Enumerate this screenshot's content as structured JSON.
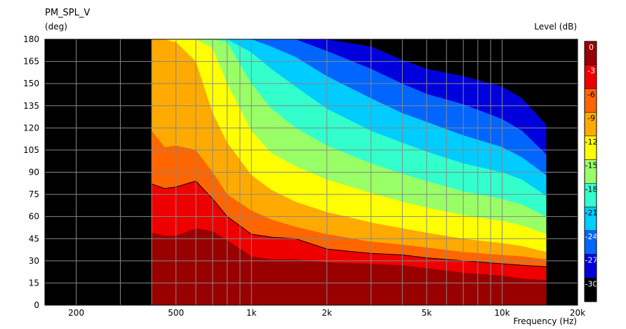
{
  "chart_data": {
    "type": "heatmap",
    "title": "PM_SPL_V",
    "ylabel": "(deg)",
    "xlabel": "Frequency  (Hz)",
    "colorbar_label": "Level  (dB)",
    "x_scale": "log",
    "xlim": [
      150,
      20000
    ],
    "ylim": [
      0,
      180
    ],
    "x_ticks": [
      200,
      500,
      1000,
      2000,
      5000,
      10000,
      20000
    ],
    "x_tick_labels": [
      "200",
      "500",
      "1k",
      "2k",
      "5k",
      "10k",
      "20k"
    ],
    "y_ticks": [
      0,
      15,
      30,
      45,
      60,
      75,
      90,
      105,
      120,
      135,
      150,
      165,
      180
    ],
    "data_x_range": [
      400,
      15000
    ],
    "grid": true,
    "colorbar": {
      "ticks": [
        0,
        -3,
        -6,
        -9,
        -12,
        -15,
        -18,
        -21,
        -24,
        -27,
        -30
      ],
      "tick_labels": [
        "0",
        "-3",
        "-6",
        "-9",
        "-12",
        "-15",
        "-18",
        "-21",
        "-24",
        "-27",
        "-30"
      ],
      "bands": [
        {
          "from": 0,
          "to": -3,
          "color": "#990000"
        },
        {
          "from": -3,
          "to": -6,
          "color": "#ee0000"
        },
        {
          "from": -6,
          "to": -9,
          "color": "#ff6600"
        },
        {
          "from": -9,
          "to": -12,
          "color": "#ffaa00"
        },
        {
          "from": -12,
          "to": -15,
          "color": "#ffff00"
        },
        {
          "from": -15,
          "to": -18,
          "color": "#99ff66"
        },
        {
          "from": -18,
          "to": -21,
          "color": "#33ffcc"
        },
        {
          "from": -21,
          "to": -24,
          "color": "#00ccff"
        },
        {
          "from": -24,
          "to": -27,
          "color": "#0066ff"
        },
        {
          "from": -27,
          "to": -30,
          "color": "#0000dd"
        },
        {
          "from": -30,
          "to": -40,
          "color": "#000000"
        }
      ]
    },
    "contours": {
      "freq_hz": [
        400,
        450,
        500,
        600,
        700,
        800,
        1000,
        1200,
        1500,
        2000,
        3000,
        4000,
        5000,
        7000,
        10000,
        12000,
        15000
      ],
      "levels": [
        {
          "db": -3,
          "angle": [
            49,
            47,
            47,
            52,
            50,
            44,
            33,
            31,
            31,
            29,
            28,
            27,
            25,
            22,
            20,
            18,
            17
          ]
        },
        {
          "db": -6,
          "angle": [
            82,
            79,
            80,
            84,
            72,
            60,
            48,
            46,
            45,
            38,
            35,
            34,
            32,
            30,
            28,
            27,
            26
          ]
        },
        {
          "db": -9,
          "angle": [
            118,
            107,
            108,
            105,
            90,
            75,
            64,
            58,
            53,
            48,
            43,
            41,
            39,
            36,
            34,
            33,
            31
          ]
        },
        {
          "db": -12,
          "angle": [
            180,
            180,
            178,
            165,
            130,
            110,
            88,
            78,
            70,
            63,
            56,
            52,
            49,
            45,
            42,
            40,
            36
          ]
        },
        {
          "db": -15,
          "angle": [
            180,
            180,
            180,
            180,
            174,
            150,
            118,
            103,
            94,
            85,
            76,
            70,
            66,
            61,
            57,
            54,
            48
          ]
        },
        {
          "db": -18,
          "angle": [
            180,
            180,
            180,
            180,
            180,
            178,
            150,
            133,
            120,
            108,
            96,
            89,
            84,
            77,
            72,
            68,
            60
          ]
        },
        {
          "db": -21,
          "angle": [
            180,
            180,
            180,
            180,
            180,
            180,
            171,
            160,
            148,
            133,
            118,
            110,
            104,
            96,
            90,
            85,
            74
          ]
        },
        {
          "db": -24,
          "angle": [
            180,
            180,
            180,
            180,
            180,
            180,
            180,
            175,
            168,
            155,
            140,
            130,
            124,
            115,
            107,
            100,
            88
          ]
        },
        {
          "db": -27,
          "angle": [
            180,
            180,
            180,
            180,
            180,
            180,
            180,
            180,
            180,
            172,
            160,
            150,
            143,
            136,
            126,
            118,
            102
          ]
        },
        {
          "db": -30,
          "angle": [
            180,
            180,
            180,
            180,
            180,
            180,
            180,
            180,
            180,
            180,
            175,
            166,
            160,
            155,
            148,
            140,
            122
          ]
        }
      ]
    }
  }
}
